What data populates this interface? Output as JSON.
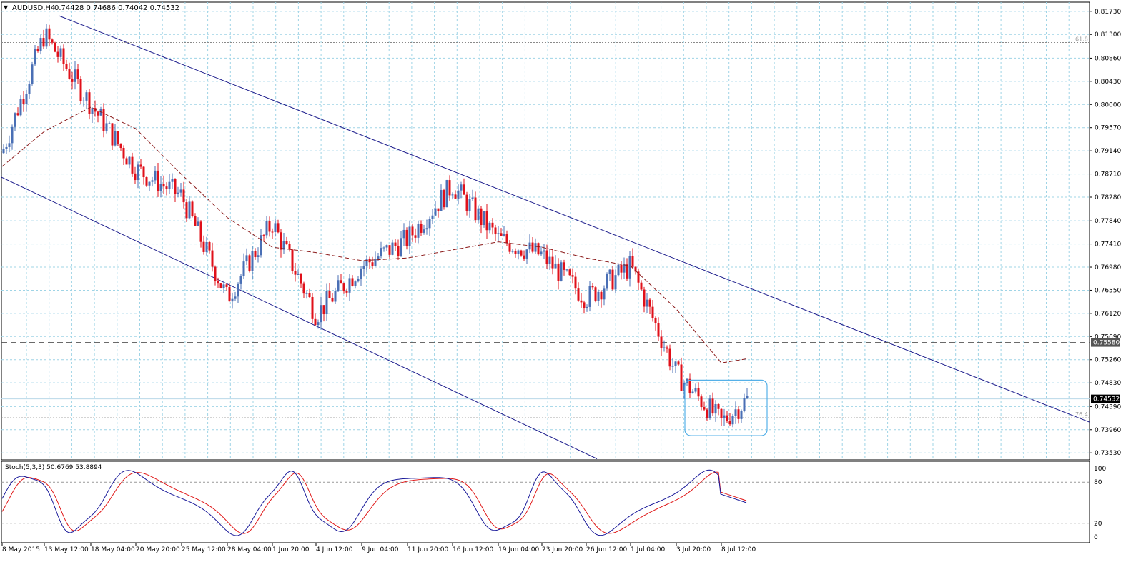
{
  "header": {
    "arrow": "▼",
    "symbol_timeframe": "AUDUSD,H4",
    "ohlc": "0.74428 0.74686 0.74042 0.74532"
  },
  "indicator": {
    "label": "Stoch(5,3,3) 50.6769 53.8894",
    "levels": [
      "100",
      "80",
      "20",
      "0"
    ]
  },
  "fib_labels": [
    "61.8",
    "76.4"
  ],
  "price_badges": {
    "current": "0.74532",
    "dashed_level": "0.75580"
  },
  "colors": {
    "bull": "#4a6fb5",
    "bear": "#e0101a",
    "ma": "#8b1a1a",
    "channel": "#1c1c8c",
    "grid": "#9fd4e6",
    "box": "#55b0e8",
    "stoch_main": "#1a1a9a",
    "stoch_signal": "#e01818"
  },
  "chart_data": {
    "type": "candlestick",
    "symbol": "AUDUSD",
    "timeframe": "H4",
    "grid": true,
    "y_ticks": [
      "0.81730",
      "0.81300",
      "0.80860",
      "0.80430",
      "0.80000",
      "0.79570",
      "0.79140",
      "0.78710",
      "0.78280",
      "0.77840",
      "0.77410",
      "0.76980",
      "0.76550",
      "0.76120",
      "0.75690",
      "0.75260",
      "0.74830",
      "0.74390",
      "0.73960",
      "0.73530"
    ],
    "y_range": [
      0.734,
      0.819
    ],
    "x_ticks": [
      "8 May 2015",
      "13 May 12:00",
      "18 May 04:00",
      "20 May 20:00",
      "25 May 12:00",
      "28 May 04:00",
      "1 Jun 20:00",
      "4 Jun 12:00",
      "9 Jun 04:00",
      "11 Jun 20:00",
      "16 Jun 12:00",
      "19 Jun 04:00",
      "23 Jun 20:00",
      "26 Jun 12:00",
      "1 Jul 04:00",
      "3 Jul 20:00",
      "8 Jul 12:00"
    ],
    "dashed_level": 0.7558,
    "fib_levels": [
      {
        "label": "61.8",
        "value": 0.8115
      },
      {
        "label": "76.4",
        "value": 0.7418
      }
    ],
    "channel": {
      "upper": {
        "start": [
          "13 May 12:00",
          0.8165
        ],
        "end": [
          "14 Jul",
          0.741
        ]
      },
      "lower": {
        "start": [
          "8 May 2015",
          0.7865
        ],
        "end": [
          "26 Jun 12:00",
          0.7342
        ]
      }
    },
    "consolidation_box": {
      "from": "3 Jul 20:00",
      "to": "9 Jul",
      "high": 0.7488,
      "low": 0.7385
    },
    "price_path": [
      [
        "8 May 2015",
        0.791
      ],
      [
        "13 May 12:00",
        0.813
      ],
      [
        "18 May 04:00",
        0.8
      ],
      [
        "20 May 20:00",
        0.788
      ],
      [
        "25 May 12:00",
        0.783
      ],
      [
        "28 May 04:00",
        0.764
      ],
      [
        "1 Jun 20:00",
        0.778
      ],
      [
        "4 Jun 12:00",
        0.761
      ],
      [
        "9 Jun 04:00",
        0.77
      ],
      [
        "11 Jun 20:00",
        0.775
      ],
      [
        "16 Jun 12:00",
        0.785
      ],
      [
        "19 Jun 04:00",
        0.775
      ],
      [
        "23 Jun 20:00",
        0.772
      ],
      [
        "26 Jun 12:00",
        0.764
      ],
      [
        "1 Jul 04:00",
        0.77
      ],
      [
        "3 Jul 20:00",
        0.75
      ],
      [
        "8 Jul 12:00",
        0.741
      ],
      [
        "9 Jul",
        0.7453
      ]
    ],
    "moving_average": [
      [
        "8 May 2015",
        0.7885
      ],
      [
        "13 May 12:00",
        0.795
      ],
      [
        "18 May 04:00",
        0.7995
      ],
      [
        "20 May 20:00",
        0.7955
      ],
      [
        "25 May 12:00",
        0.787
      ],
      [
        "28 May 04:00",
        0.779
      ],
      [
        "1 Jun 20:00",
        0.7735
      ],
      [
        "4 Jun 12:00",
        0.7725
      ],
      [
        "9 Jun 04:00",
        0.771
      ],
      [
        "11 Jun 20:00",
        0.7715
      ],
      [
        "16 Jun 12:00",
        0.773
      ],
      [
        "19 Jun 04:00",
        0.7745
      ],
      [
        "23 Jun 20:00",
        0.7735
      ],
      [
        "26 Jun 12:00",
        0.7715
      ],
      [
        "1 Jul 04:00",
        0.77
      ],
      [
        "3 Jul 20:00",
        0.762
      ],
      [
        "8 Jul 12:00",
        0.752
      ]
    ],
    "stochastic": {
      "k": 50.6769,
      "d": 53.8894,
      "levels": [
        80,
        20
      ]
    }
  }
}
